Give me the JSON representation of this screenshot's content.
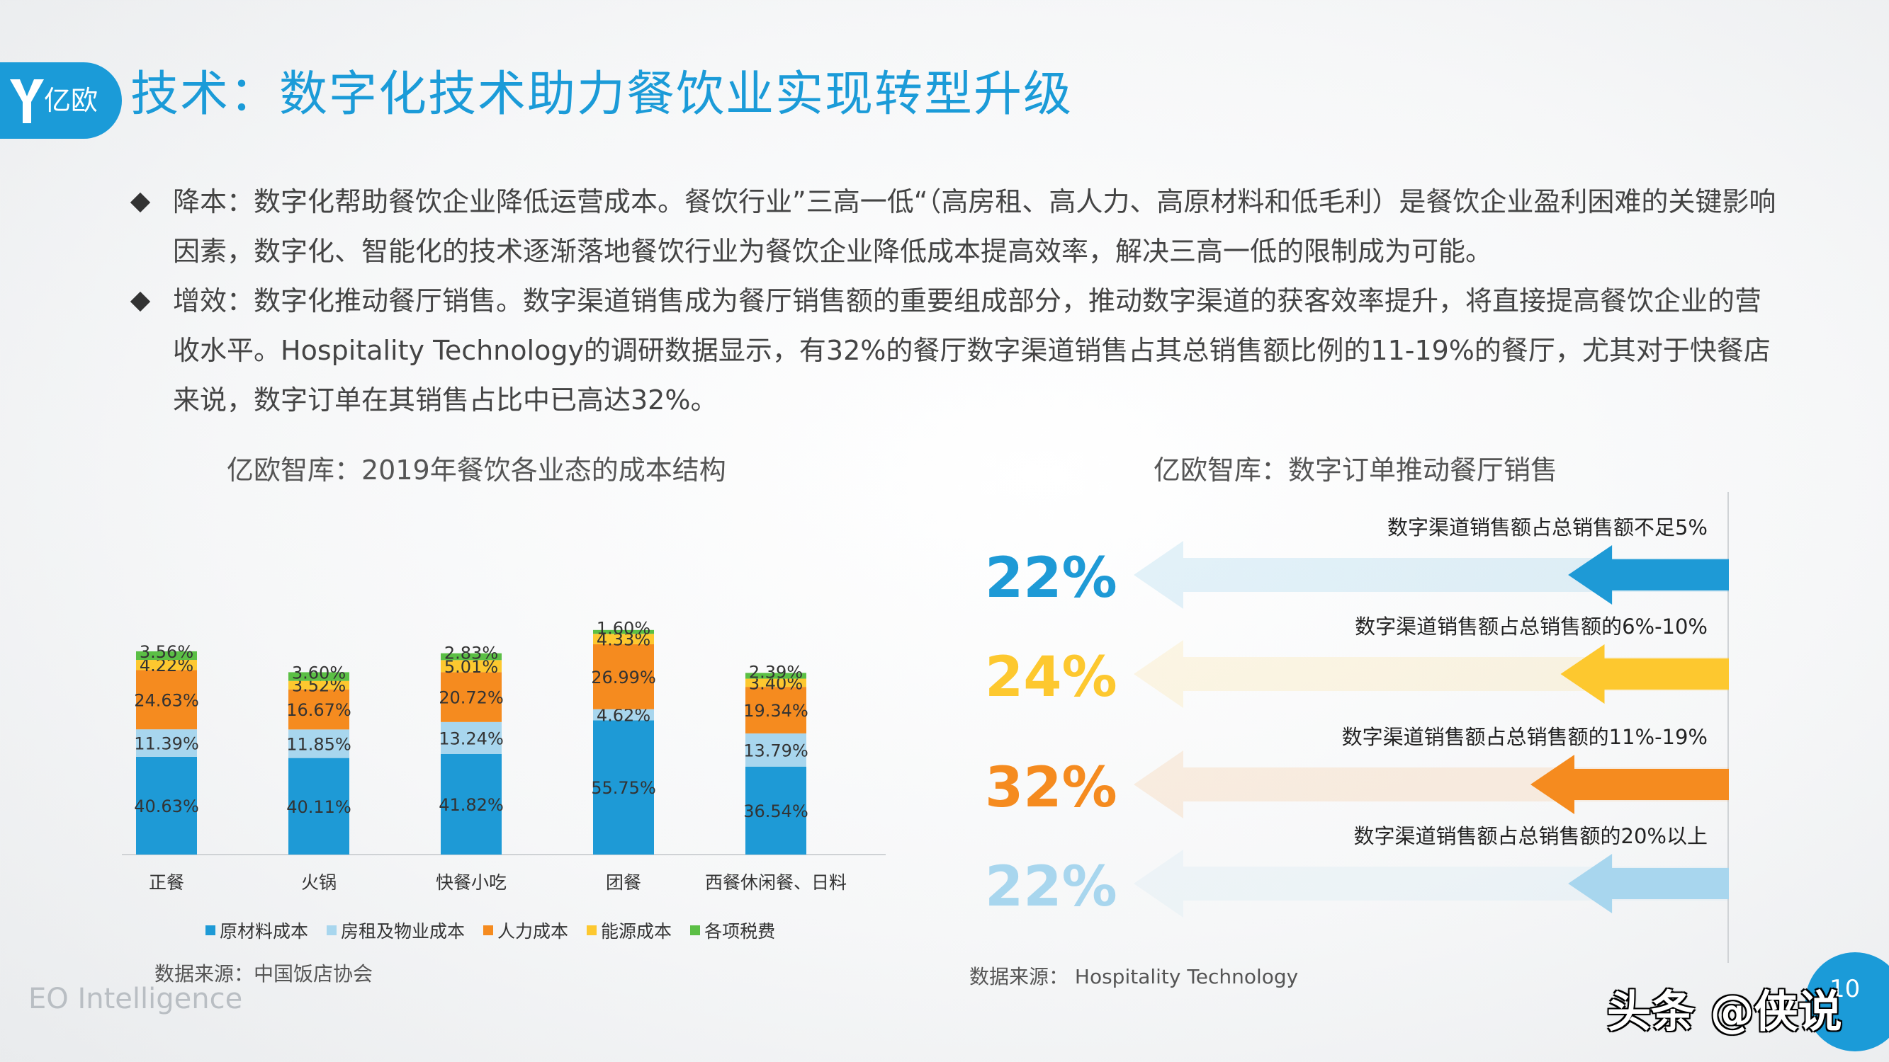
{
  "header": {
    "logo_text": "亿欧",
    "title": "技术：数字化技术助力餐饮业实现转型升级"
  },
  "bullets": [
    {
      "text": "降本：数字化帮助餐饮企业降低运营成本。餐饮行业”三高一低“（高房租、高人力、高原材料和低毛利）是餐饮企业盈利困难的关键影响因素，数字化、智能化的技术逐渐落地餐饮行业为餐饮企业降低成本提高效率，解决三高一低的限制成为可能。"
    },
    {
      "text": "增效：数字化推动餐厅销售。数字渠道销售成为餐厅销售额的重要组成部分，推动数字渠道的获客效率提升，将直接提高餐饮企业的营收水平。Hospitality Technology的调研数据显示，有32%的餐厅数字渠道销售占其总销售额比例的11-19%的餐厅，尤其对于快餐店来说，数字订单在其销售占比中已高达32%。"
    }
  ],
  "chart_data": [
    {
      "type": "bar",
      "stacked": true,
      "title": "亿欧智库：2019年餐饮各业态的成本结构",
      "categories": [
        "正餐",
        "火锅",
        "快餐小吃",
        "团餐",
        "西餐休闲餐、日料"
      ],
      "series": [
        {
          "name": "原材料成本",
          "color": "#1e9ad6",
          "values": [
            40.63,
            40.11,
            41.82,
            55.75,
            36.54
          ]
        },
        {
          "name": "房租及物业成本",
          "color": "#a8d6ee",
          "values": [
            11.39,
            11.85,
            13.24,
            4.62,
            13.79
          ]
        },
        {
          "name": "人力成本",
          "color": "#f58b1f",
          "values": [
            24.63,
            16.67,
            20.72,
            26.99,
            19.34
          ]
        },
        {
          "name": "能源成本",
          "color": "#fdc82f",
          "values": [
            4.22,
            3.52,
            5.01,
            4.33,
            3.4
          ]
        },
        {
          "name": "各项税费",
          "color": "#5bbf45",
          "values": [
            3.56,
            3.6,
            2.83,
            1.6,
            2.39
          ]
        }
      ],
      "value_labels": [
        [
          "40.63%",
          "11.39%",
          "24.63%",
          "4.22%",
          "3.56%"
        ],
        [
          "40.11%",
          "11.85%",
          "16.67%",
          "3.52%",
          "3.60%"
        ],
        [
          "41.82%",
          "13.24%",
          "20.72%",
          "5.01%",
          "2.83%"
        ],
        [
          "55.75%",
          "4.62%",
          "26.99%",
          "4.33%",
          "1.60%"
        ],
        [
          "36.54%",
          "13.79%",
          "19.34%",
          "3.40%",
          "2.39%"
        ]
      ],
      "source": "数据来源：中国饭店协会",
      "legend": "bottom"
    },
    {
      "type": "bar",
      "orientation": "horizontal",
      "title": "亿欧智库：数字订单推动餐厅销售",
      "categories": [
        "数字渠道销售额占总销售额不足5%",
        "数字渠道销售额占总销售额的6%-10%",
        "数字渠道销售额占总销售额的11%-19%",
        "数字渠道销售额占总销售额的20%以上"
      ],
      "values": [
        22,
        24,
        32,
        22
      ],
      "value_labels": [
        "22%",
        "24%",
        "32%",
        "22%"
      ],
      "colors": [
        "#1e9ad6",
        "#fdc82f",
        "#f58b1f",
        "#a8d6ee"
      ],
      "source": "数据来源：   Hospitality Technology"
    }
  ],
  "footer": {
    "brand": "EO Intelligence",
    "page_number": "10",
    "watermark": "头条 @侠说"
  }
}
